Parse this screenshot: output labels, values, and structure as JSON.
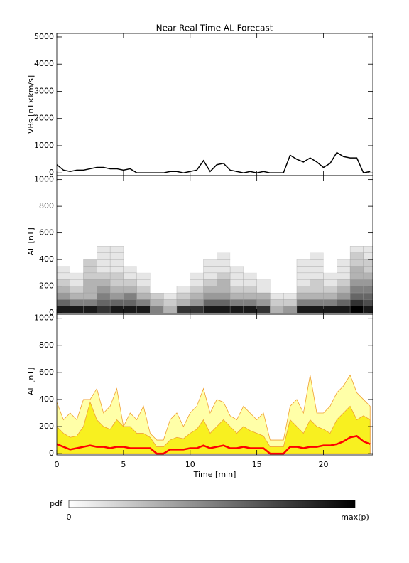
{
  "title": "Near Real Time AL Forecast",
  "chart_data": [
    {
      "type": "line",
      "ylabel": "VBs [nT×km/s]",
      "xlim": [
        0,
        23.7
      ],
      "xticks": [
        0,
        5,
        10,
        15,
        20
      ],
      "ylim": [
        -100,
        5130
      ],
      "yticks": [
        0,
        1000,
        2000,
        3000,
        4000,
        5000
      ],
      "x": [
        0,
        0.5,
        1,
        1.5,
        2,
        2.5,
        3,
        3.5,
        4,
        4.5,
        5,
        5.5,
        6,
        6.5,
        7,
        7.5,
        8,
        8.5,
        9,
        9.5,
        10,
        10.5,
        11,
        11.5,
        12,
        12.5,
        13,
        13.5,
        14,
        14.5,
        15,
        15.5,
        16,
        16.5,
        17,
        17.5,
        18,
        18.5,
        19,
        19.5,
        20,
        20.5,
        21,
        21.5,
        22,
        22.5,
        23,
        23.5
      ],
      "series": [
        {
          "color": "#000000",
          "values": [
            300,
            100,
            50,
            100,
            100,
            150,
            200,
            200,
            150,
            150,
            100,
            150,
            0,
            0,
            0,
            0,
            0,
            50,
            50,
            0,
            50,
            100,
            450,
            50,
            300,
            350,
            100,
            50,
            0,
            50,
            0,
            50,
            0,
            0,
            0,
            650,
            500,
            400,
            550,
            400,
            200,
            350,
            750,
            600,
            550,
            550,
            0,
            50
          ]
        }
      ]
    },
    {
      "type": "heatmap",
      "ylabel": "−AL [nT]",
      "xlim": [
        0,
        23.7
      ],
      "xticks": [
        0,
        5,
        10,
        15,
        20
      ],
      "ylim": [
        -10,
        1030
      ],
      "yticks": [
        0,
        200,
        400,
        600,
        800,
        1000
      ],
      "xbins": [
        0,
        1,
        2,
        3,
        4,
        5,
        6,
        7,
        8,
        9,
        10,
        11,
        12,
        13,
        14,
        15,
        16,
        17,
        18,
        19,
        20,
        21,
        22,
        23,
        24
      ],
      "ybins": [
        0,
        50,
        100,
        150,
        200,
        250,
        300,
        350,
        400,
        450,
        500
      ],
      "values": [
        [
          0.9,
          0.9,
          0.9,
          0.8,
          0.9,
          0.9,
          0.9,
          0.5,
          0.3,
          0.8,
          0.8,
          0.9,
          0.9,
          0.9,
          0.9,
          0.8,
          0.3,
          0.4,
          0.9,
          0.9,
          0.9,
          0.9,
          1,
          0.9
        ],
        [
          0.6,
          0.5,
          0.5,
          0.6,
          0.6,
          0.6,
          0.5,
          0.3,
          0.2,
          0.3,
          0.4,
          0.6,
          0.6,
          0.5,
          0.5,
          0.4,
          0.2,
          0.2,
          0.5,
          0.5,
          0.5,
          0.6,
          0.8,
          0.7
        ],
        [
          0.4,
          0.3,
          0.3,
          0.5,
          0.4,
          0.5,
          0.3,
          0.2,
          0.1,
          0.2,
          0.3,
          0.4,
          0.4,
          0.3,
          0.3,
          0.3,
          0.1,
          0.1,
          0.3,
          0.3,
          0.3,
          0.4,
          0.6,
          0.6
        ],
        [
          0.3,
          0.2,
          0.3,
          0.4,
          0.3,
          0.3,
          0.2,
          0,
          0,
          0.1,
          0.2,
          0.3,
          0.3,
          0.2,
          0.2,
          0.1,
          0,
          0,
          0.2,
          0.2,
          0.2,
          0.3,
          0.5,
          0.5
        ],
        [
          0.2,
          0.1,
          0.3,
          0.3,
          0.2,
          0.2,
          0.1,
          0,
          0,
          0,
          0.1,
          0.2,
          0.3,
          0.1,
          0.1,
          0.1,
          0,
          0,
          0.1,
          0.2,
          0.1,
          0.2,
          0.4,
          0.4
        ],
        [
          0.1,
          0.1,
          0.2,
          0.2,
          0.2,
          0.1,
          0.1,
          0,
          0,
          0,
          0.1,
          0.1,
          0.2,
          0.1,
          0.1,
          0,
          0,
          0,
          0.1,
          0.1,
          0.1,
          0.1,
          0.3,
          0.3
        ],
        [
          0.1,
          0,
          0.2,
          0.1,
          0.1,
          0.1,
          0,
          0,
          0,
          0,
          0,
          0.1,
          0.1,
          0.1,
          0,
          0,
          0,
          0,
          0.1,
          0.1,
          0,
          0.1,
          0.3,
          0.2
        ],
        [
          0,
          0,
          0.2,
          0.1,
          0.1,
          0,
          0,
          0,
          0,
          0,
          0,
          0.1,
          0.1,
          0,
          0,
          0,
          0,
          0,
          0.1,
          0.1,
          0,
          0.1,
          0.2,
          0.2
        ],
        [
          0,
          0,
          0,
          0.1,
          0.1,
          0,
          0,
          0,
          0,
          0,
          0,
          0,
          0.1,
          0,
          0,
          0,
          0,
          0,
          0,
          0.1,
          0,
          0,
          0.2,
          0.1
        ],
        [
          0,
          0,
          0,
          0.1,
          0.1,
          0,
          0,
          0,
          0,
          0,
          0,
          0,
          0,
          0,
          0,
          0,
          0,
          0,
          0,
          0,
          0,
          0,
          0.1,
          0.1
        ]
      ]
    },
    {
      "type": "area",
      "ylabel": "−AL [nT]",
      "xlabel": "Time [min]",
      "xlim": [
        0,
        23.7
      ],
      "xticks": [
        0,
        5,
        10,
        15,
        20
      ],
      "ylim": [
        -10,
        1030
      ],
      "yticks": [
        0,
        200,
        400,
        600,
        800,
        1000
      ],
      "x": [
        0,
        0.5,
        1,
        1.5,
        2,
        2.5,
        3,
        3.5,
        4,
        4.5,
        5,
        5.5,
        6,
        6.5,
        7,
        7.5,
        8,
        8.5,
        9,
        9.5,
        10,
        10.5,
        11,
        11.5,
        12,
        12.5,
        13,
        13.5,
        14,
        14.5,
        15,
        15.5,
        16,
        16.5,
        17,
        17.5,
        18,
        18.5,
        19,
        19.5,
        20,
        20.5,
        21,
        21.5,
        22,
        22.5,
        23,
        23.5
      ],
      "series": [
        {
          "kind": "area",
          "color": "#ffffa8",
          "edge": "#f0a030",
          "values": [
            380,
            250,
            300,
            250,
            400,
            400,
            480,
            300,
            350,
            480,
            200,
            300,
            250,
            350,
            150,
            100,
            100,
            250,
            300,
            200,
            300,
            350,
            480,
            300,
            400,
            380,
            280,
            250,
            350,
            300,
            250,
            300,
            100,
            100,
            100,
            350,
            400,
            300,
            580,
            300,
            300,
            350,
            450,
            500,
            580,
            450,
            400,
            350
          ]
        },
        {
          "kind": "area",
          "color": "#f8f020",
          "edge": "#f0a030",
          "values": [
            200,
            150,
            120,
            130,
            200,
            380,
            250,
            200,
            180,
            250,
            200,
            200,
            150,
            150,
            120,
            50,
            50,
            100,
            120,
            110,
            150,
            180,
            250,
            150,
            200,
            250,
            200,
            150,
            200,
            170,
            150,
            130,
            50,
            50,
            50,
            250,
            200,
            150,
            250,
            200,
            180,
            150,
            250,
            300,
            350,
            250,
            280,
            250
          ]
        },
        {
          "kind": "line",
          "color": "#ff0000",
          "values": [
            70,
            50,
            30,
            40,
            50,
            60,
            50,
            50,
            40,
            50,
            50,
            40,
            40,
            40,
            40,
            0,
            0,
            30,
            30,
            30,
            40,
            40,
            60,
            40,
            50,
            60,
            40,
            40,
            50,
            40,
            40,
            40,
            0,
            0,
            0,
            50,
            50,
            40,
            50,
            50,
            60,
            60,
            70,
            90,
            120,
            130,
            90,
            70
          ]
        }
      ]
    }
  ],
  "colorbar": {
    "label": "pdf",
    "min_label": "0",
    "max_label": "max(p)"
  }
}
